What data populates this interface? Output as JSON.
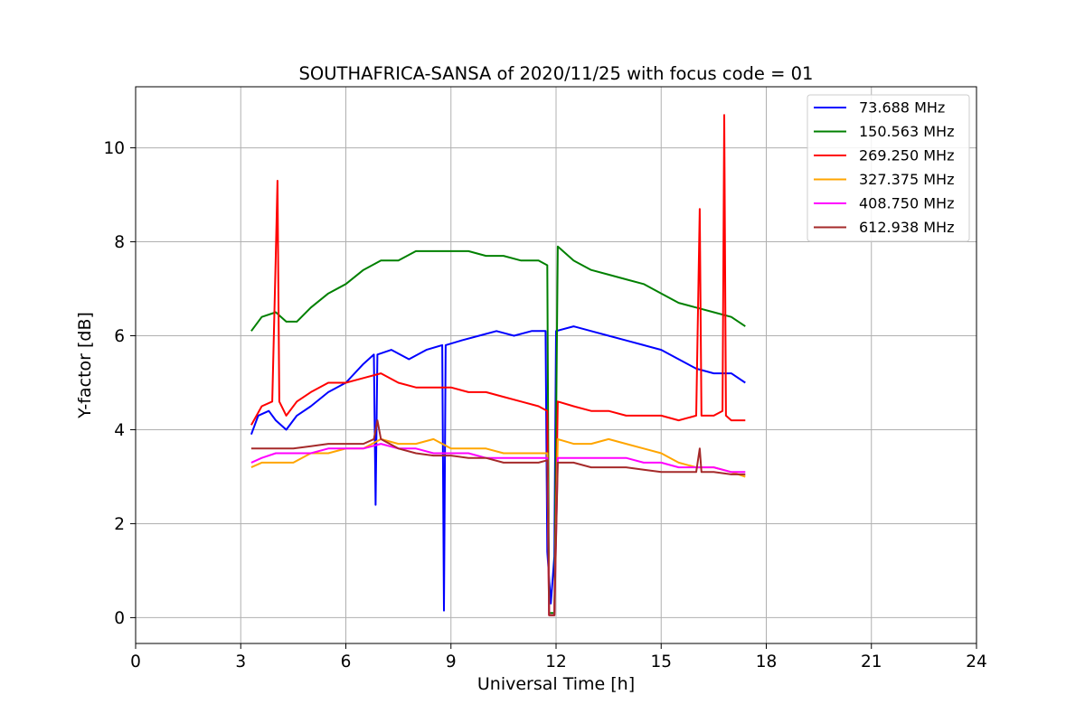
{
  "chart_data": {
    "type": "line",
    "title": "SOUTHAFRICA-SANSA of 2020/11/25 with focus code = 01",
    "xlabel": "Universal Time [h]",
    "ylabel": "Y-factor [dB]",
    "xlim": [
      0,
      24
    ],
    "ylim": [
      -0.55,
      11.3
    ],
    "xticks": [
      0,
      3,
      6,
      9,
      12,
      15,
      18,
      21,
      24
    ],
    "yticks": [
      0,
      2,
      4,
      6,
      8,
      10
    ],
    "grid": true,
    "legend_position": "top-right",
    "series": [
      {
        "name": " 73.688 MHz",
        "color": "#0000ff",
        "points": [
          [
            3.3,
            3.9
          ],
          [
            3.5,
            4.3
          ],
          [
            3.8,
            4.4
          ],
          [
            4.0,
            4.2
          ],
          [
            4.3,
            4.0
          ],
          [
            4.6,
            4.3
          ],
          [
            5.0,
            4.5
          ],
          [
            5.5,
            4.8
          ],
          [
            6.0,
            5.0
          ],
          [
            6.5,
            5.4
          ],
          [
            6.8,
            5.6
          ],
          [
            6.85,
            2.4
          ],
          [
            6.9,
            5.6
          ],
          [
            7.3,
            5.7
          ],
          [
            7.8,
            5.5
          ],
          [
            8.3,
            5.7
          ],
          [
            8.75,
            5.8
          ],
          [
            8.8,
            0.15
          ],
          [
            8.85,
            5.8
          ],
          [
            9.3,
            5.9
          ],
          [
            9.8,
            6.0
          ],
          [
            10.3,
            6.1
          ],
          [
            10.8,
            6.0
          ],
          [
            11.3,
            6.1
          ],
          [
            11.7,
            6.1
          ],
          [
            11.75,
            1.4
          ],
          [
            11.85,
            0.3
          ],
          [
            11.95,
            1.3
          ],
          [
            12.0,
            6.1
          ],
          [
            12.5,
            6.2
          ],
          [
            13.0,
            6.1
          ],
          [
            13.5,
            6.0
          ],
          [
            14.0,
            5.9
          ],
          [
            14.5,
            5.8
          ],
          [
            15.0,
            5.7
          ],
          [
            15.5,
            5.5
          ],
          [
            16.0,
            5.3
          ],
          [
            16.5,
            5.2
          ],
          [
            17.0,
            5.2
          ],
          [
            17.4,
            5.0
          ]
        ]
      },
      {
        "name": "150.563 MHz",
        "color": "#008000",
        "points": [
          [
            3.3,
            6.1
          ],
          [
            3.6,
            6.4
          ],
          [
            4.0,
            6.5
          ],
          [
            4.3,
            6.3
          ],
          [
            4.6,
            6.3
          ],
          [
            5.0,
            6.6
          ],
          [
            5.5,
            6.9
          ],
          [
            6.0,
            7.1
          ],
          [
            6.5,
            7.4
          ],
          [
            7.0,
            7.6
          ],
          [
            7.5,
            7.6
          ],
          [
            8.0,
            7.8
          ],
          [
            8.5,
            7.8
          ],
          [
            9.0,
            7.8
          ],
          [
            9.5,
            7.8
          ],
          [
            10.0,
            7.7
          ],
          [
            10.5,
            7.7
          ],
          [
            11.0,
            7.6
          ],
          [
            11.5,
            7.6
          ],
          [
            11.75,
            7.5
          ],
          [
            11.8,
            0.1
          ],
          [
            11.95,
            0.1
          ],
          [
            12.05,
            7.9
          ],
          [
            12.5,
            7.6
          ],
          [
            13.0,
            7.4
          ],
          [
            13.5,
            7.3
          ],
          [
            14.0,
            7.2
          ],
          [
            14.5,
            7.1
          ],
          [
            15.0,
            6.9
          ],
          [
            15.5,
            6.7
          ],
          [
            16.0,
            6.6
          ],
          [
            16.5,
            6.5
          ],
          [
            17.0,
            6.4
          ],
          [
            17.4,
            6.2
          ]
        ]
      },
      {
        "name": "269.250 MHz",
        "color": "#ff0000",
        "points": [
          [
            3.3,
            4.1
          ],
          [
            3.6,
            4.5
          ],
          [
            3.9,
            4.6
          ],
          [
            4.0,
            7.7
          ],
          [
            4.05,
            9.3
          ],
          [
            4.1,
            4.6
          ],
          [
            4.3,
            4.3
          ],
          [
            4.6,
            4.6
          ],
          [
            5.0,
            4.8
          ],
          [
            5.5,
            5.0
          ],
          [
            6.0,
            5.0
          ],
          [
            6.5,
            5.1
          ],
          [
            7.0,
            5.2
          ],
          [
            7.5,
            5.0
          ],
          [
            8.0,
            4.9
          ],
          [
            8.5,
            4.9
          ],
          [
            9.0,
            4.9
          ],
          [
            9.5,
            4.8
          ],
          [
            10.0,
            4.8
          ],
          [
            10.5,
            4.7
          ],
          [
            11.0,
            4.6
          ],
          [
            11.5,
            4.5
          ],
          [
            11.75,
            4.4
          ],
          [
            11.8,
            0.05
          ],
          [
            11.95,
            0.05
          ],
          [
            12.05,
            4.6
          ],
          [
            12.5,
            4.5
          ],
          [
            13.0,
            4.4
          ],
          [
            13.5,
            4.4
          ],
          [
            14.0,
            4.3
          ],
          [
            14.5,
            4.3
          ],
          [
            15.0,
            4.3
          ],
          [
            15.5,
            4.2
          ],
          [
            16.0,
            4.3
          ],
          [
            16.1,
            8.7
          ],
          [
            16.15,
            4.3
          ],
          [
            16.5,
            4.3
          ],
          [
            16.75,
            4.4
          ],
          [
            16.8,
            10.7
          ],
          [
            16.85,
            4.3
          ],
          [
            17.0,
            4.2
          ],
          [
            17.4,
            4.2
          ]
        ]
      },
      {
        "name": "327.375 MHz",
        "color": "#ffa500",
        "points": [
          [
            3.3,
            3.2
          ],
          [
            3.6,
            3.3
          ],
          [
            4.0,
            3.3
          ],
          [
            4.5,
            3.3
          ],
          [
            5.0,
            3.5
          ],
          [
            5.5,
            3.5
          ],
          [
            6.0,
            3.6
          ],
          [
            6.5,
            3.6
          ],
          [
            7.0,
            3.8
          ],
          [
            7.5,
            3.7
          ],
          [
            8.0,
            3.7
          ],
          [
            8.5,
            3.8
          ],
          [
            9.0,
            3.6
          ],
          [
            9.5,
            3.6
          ],
          [
            10.0,
            3.6
          ],
          [
            10.5,
            3.5
          ],
          [
            11.0,
            3.5
          ],
          [
            11.5,
            3.5
          ],
          [
            11.75,
            3.5
          ],
          [
            11.8,
            0.05
          ],
          [
            11.95,
            0.05
          ],
          [
            12.05,
            3.8
          ],
          [
            12.5,
            3.7
          ],
          [
            13.0,
            3.7
          ],
          [
            13.5,
            3.8
          ],
          [
            14.0,
            3.7
          ],
          [
            14.5,
            3.6
          ],
          [
            15.0,
            3.5
          ],
          [
            15.5,
            3.3
          ],
          [
            16.0,
            3.2
          ],
          [
            16.5,
            3.2
          ],
          [
            17.0,
            3.1
          ],
          [
            17.4,
            3.0
          ]
        ]
      },
      {
        "name": "408.750 MHz",
        "color": "#ff00ff",
        "points": [
          [
            3.3,
            3.3
          ],
          [
            3.6,
            3.4
          ],
          [
            4.0,
            3.5
          ],
          [
            4.5,
            3.5
          ],
          [
            5.0,
            3.5
          ],
          [
            5.5,
            3.6
          ],
          [
            6.0,
            3.6
          ],
          [
            6.5,
            3.6
          ],
          [
            7.0,
            3.7
          ],
          [
            7.5,
            3.6
          ],
          [
            8.0,
            3.6
          ],
          [
            8.5,
            3.5
          ],
          [
            9.0,
            3.5
          ],
          [
            9.5,
            3.5
          ],
          [
            10.0,
            3.4
          ],
          [
            10.5,
            3.4
          ],
          [
            11.0,
            3.4
          ],
          [
            11.5,
            3.4
          ],
          [
            11.75,
            3.4
          ],
          [
            11.8,
            0.05
          ],
          [
            11.95,
            0.05
          ],
          [
            12.05,
            3.4
          ],
          [
            12.5,
            3.4
          ],
          [
            13.0,
            3.4
          ],
          [
            13.5,
            3.4
          ],
          [
            14.0,
            3.4
          ],
          [
            14.5,
            3.3
          ],
          [
            15.0,
            3.3
          ],
          [
            15.5,
            3.2
          ],
          [
            16.0,
            3.2
          ],
          [
            16.5,
            3.2
          ],
          [
            17.0,
            3.1
          ],
          [
            17.4,
            3.1
          ]
        ]
      },
      {
        "name": "612.938 MHz",
        "color": "#a52a2a",
        "points": [
          [
            3.3,
            3.6
          ],
          [
            3.6,
            3.6
          ],
          [
            4.0,
            3.6
          ],
          [
            4.5,
            3.6
          ],
          [
            5.0,
            3.65
          ],
          [
            5.5,
            3.7
          ],
          [
            6.0,
            3.7
          ],
          [
            6.5,
            3.7
          ],
          [
            6.8,
            3.8
          ],
          [
            6.9,
            4.2
          ],
          [
            7.0,
            3.8
          ],
          [
            7.5,
            3.6
          ],
          [
            8.0,
            3.5
          ],
          [
            8.5,
            3.45
          ],
          [
            9.0,
            3.45
          ],
          [
            9.5,
            3.4
          ],
          [
            10.0,
            3.4
          ],
          [
            10.5,
            3.3
          ],
          [
            11.0,
            3.3
          ],
          [
            11.5,
            3.3
          ],
          [
            11.75,
            3.35
          ],
          [
            11.8,
            0.05
          ],
          [
            11.95,
            0.05
          ],
          [
            12.05,
            3.3
          ],
          [
            12.5,
            3.3
          ],
          [
            13.0,
            3.2
          ],
          [
            13.5,
            3.2
          ],
          [
            14.0,
            3.2
          ],
          [
            14.5,
            3.15
          ],
          [
            15.0,
            3.1
          ],
          [
            15.5,
            3.1
          ],
          [
            16.0,
            3.1
          ],
          [
            16.1,
            3.6
          ],
          [
            16.15,
            3.1
          ],
          [
            16.5,
            3.1
          ],
          [
            17.0,
            3.05
          ],
          [
            17.4,
            3.05
          ]
        ]
      }
    ]
  }
}
